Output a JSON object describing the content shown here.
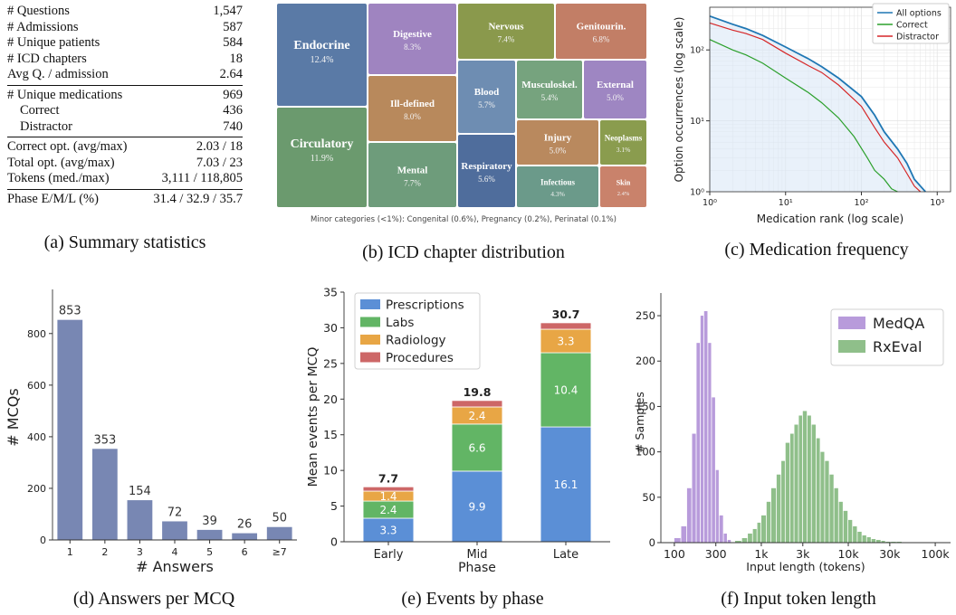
{
  "captions": {
    "a": "(a) Summary statistics",
    "b": "(b) ICD chapter distribution",
    "c": "(c) Medication frequency",
    "d": "(d) Answers per MCQ",
    "e": "(e) Events by phase",
    "f": "(f) Input token length"
  },
  "summary": {
    "groups": [
      [
        {
          "label": "# Questions",
          "value": "1,547"
        },
        {
          "label": "# Admissions",
          "value": "587"
        },
        {
          "label": "# Unique patients",
          "value": "584"
        },
        {
          "label": "# ICD chapters",
          "value": "18"
        },
        {
          "label": "Avg Q. / admission",
          "value": "2.64"
        }
      ],
      [
        {
          "label": "# Unique medications",
          "value": "969"
        },
        {
          "label": "Correct",
          "value": "436",
          "indent": true
        },
        {
          "label": "Distractor",
          "value": "740",
          "indent": true
        }
      ],
      [
        {
          "label": "Correct opt. (avg/max)",
          "value": "2.03 / 18"
        },
        {
          "label": "Total opt. (avg/max)",
          "value": "7.03 / 23"
        },
        {
          "label": "Tokens (med./max)",
          "value": "3,111 / 118,805"
        }
      ],
      [
        {
          "label": "Phase E/M/L (%)",
          "value": "31.4 / 32.9 / 35.7"
        }
      ]
    ]
  },
  "chart_data": [
    {
      "type": "treemap",
      "items": [
        {
          "name": "Endocrine",
          "value": 12.4,
          "label": "12.4%",
          "color": "#5a7aa6"
        },
        {
          "name": "Circulatory",
          "value": 11.9,
          "label": "11.9%",
          "color": "#6b9a6e"
        },
        {
          "name": "Digestive",
          "value": 8.3,
          "label": "8.3%",
          "color": "#9f84c0"
        },
        {
          "name": "Ill-defined",
          "value": 8.0,
          "label": "8.0%",
          "color": "#b8895c"
        },
        {
          "name": "Mental",
          "value": 7.7,
          "label": "7.7%",
          "color": "#6e9c7b"
        },
        {
          "name": "Nervous",
          "value": 7.4,
          "label": "7.4%",
          "color": "#8a994c"
        },
        {
          "name": "Genitourin.",
          "value": 6.8,
          "label": "6.8%",
          "color": "#c27e66"
        },
        {
          "name": "Blood",
          "value": 5.7,
          "label": "5.7%",
          "color": "#6e8db2"
        },
        {
          "name": "Musculoskel.",
          "value": 5.4,
          "label": "5.4%",
          "color": "#76a37e"
        },
        {
          "name": "External",
          "value": 5.0,
          "label": "5.0%",
          "color": "#9e86c2"
        },
        {
          "name": "Respiratory",
          "value": 5.6,
          "label": "5.6%",
          "color": "#4f6d9c"
        },
        {
          "name": "Injury",
          "value": 5.0,
          "label": "5.0%",
          "color": "#b9895e"
        },
        {
          "name": "Neoplasms",
          "value": 3.1,
          "label": "3.1%",
          "color": "#8a9c4e"
        },
        {
          "name": "Infectious",
          "value": 4.3,
          "label": "4.3%",
          "color": "#6b9a8a"
        },
        {
          "name": "Skin",
          "value": 2.4,
          "label": "2.4%",
          "color": "#c9826b"
        }
      ],
      "note": "Minor categories (<1%): Congenital (0.6%), Pregnancy (0.2%), Perinatal (0.1%)"
    },
    {
      "type": "line",
      "xlabel": "Medication rank (log scale)",
      "ylabel": "Option occurrences (log scale)",
      "xscale": "log",
      "yscale": "log",
      "xlim": [
        1,
        1500
      ],
      "ylim": [
        1,
        400
      ],
      "xticks": [
        "10⁰",
        "10¹",
        "10²",
        "10³"
      ],
      "yticks": [
        "10⁰",
        "10¹",
        "10²"
      ],
      "legend_position": "top-right",
      "series": [
        {
          "name": "All options",
          "color": "#1f77b4",
          "x": [
            1,
            2,
            3,
            5,
            10,
            20,
            30,
            50,
            100,
            150,
            200,
            300,
            400,
            500,
            600,
            700
          ],
          "y": [
            300,
            230,
            200,
            160,
            110,
            75,
            58,
            40,
            22,
            12,
            7,
            4,
            2.5,
            1.5,
            1.2,
            1
          ]
        },
        {
          "name": "Correct",
          "color": "#2ca02c",
          "x": [
            1,
            2,
            3,
            5,
            10,
            20,
            30,
            50,
            80,
            120,
            150,
            200,
            250,
            300
          ],
          "y": [
            140,
            100,
            85,
            65,
            40,
            25,
            18,
            11,
            6,
            3,
            2,
            1.5,
            1.1,
            1
          ]
        },
        {
          "name": "Distractor",
          "color": "#d62728",
          "x": [
            1,
            2,
            3,
            5,
            10,
            20,
            30,
            50,
            100,
            150,
            200,
            300,
            400,
            500,
            600
          ],
          "y": [
            240,
            190,
            170,
            140,
            90,
            60,
            48,
            32,
            16,
            8,
            5,
            3,
            1.8,
            1.2,
            1
          ]
        }
      ]
    },
    {
      "type": "bar",
      "xlabel": "# Answers",
      "ylabel": "# MCQs",
      "categories": [
        "1",
        "2",
        "3",
        "4",
        "5",
        "6",
        "≥7"
      ],
      "values": [
        853,
        353,
        154,
        72,
        39,
        26,
        50
      ],
      "ylim": [
        0,
        950
      ],
      "yticks": [
        0,
        200,
        400,
        600,
        800
      ],
      "color": "#7887b3"
    },
    {
      "type": "bar",
      "stacked": true,
      "xlabel": "Phase",
      "ylabel": "Mean events per MCQ",
      "categories": [
        "Early",
        "Mid",
        "Late"
      ],
      "ylim": [
        0,
        35
      ],
      "yticks": [
        0,
        5,
        10,
        15,
        20,
        25,
        30,
        35
      ],
      "legend_position": "top-left",
      "series": [
        {
          "name": "Prescriptions",
          "color": "#5b8fd6",
          "values": [
            3.3,
            9.9,
            16.1
          ],
          "labels": [
            "3.3",
            "9.9",
            "16.1"
          ]
        },
        {
          "name": "Labs",
          "color": "#62b565",
          "values": [
            2.4,
            6.6,
            10.4
          ],
          "labels": [
            "2.4",
            "6.6",
            "10.4"
          ]
        },
        {
          "name": "Radiology",
          "color": "#e8a645",
          "values": [
            1.4,
            2.4,
            3.3
          ],
          "labels": [
            "1.4",
            "2.4",
            "3.3"
          ]
        },
        {
          "name": "Procedures",
          "color": "#cd6767",
          "values": [
            0.6,
            0.9,
            0.9
          ]
        }
      ],
      "totals": [
        "7.7",
        "19.8",
        "30.7"
      ]
    },
    {
      "type": "histogram",
      "xlabel": "Input length (tokens)",
      "ylabel": "# Samples",
      "xscale": "log",
      "xlim": [
        70,
        150000
      ],
      "ylim": [
        0,
        265
      ],
      "xticks": [
        {
          "value": 100,
          "label": "100"
        },
        {
          "value": 300,
          "label": "300"
        },
        {
          "value": 1000,
          "label": "1k"
        },
        {
          "value": 3000,
          "label": "3k"
        },
        {
          "value": 10000,
          "label": "10k"
        },
        {
          "value": 30000,
          "label": "30k"
        },
        {
          "value": 100000,
          "label": "100k"
        }
      ],
      "yticks": [
        0,
        50,
        100,
        150,
        200,
        250
      ],
      "legend_position": "top-right",
      "series": [
        {
          "name": "MedQA",
          "color": "#b89bdb",
          "bins": [
            [
              100,
              5
            ],
            [
              120,
              18
            ],
            [
              140,
              60
            ],
            [
              160,
              120
            ],
            [
              180,
              220
            ],
            [
              200,
              250
            ],
            [
              220,
              255
            ],
            [
              245,
              220
            ],
            [
              270,
              160
            ],
            [
              300,
              80
            ],
            [
              330,
              30
            ],
            [
              370,
              10
            ],
            [
              410,
              3
            ]
          ]
        },
        {
          "name": "RxEval",
          "color": "#8fbf8a",
          "bins": [
            [
              500,
              2
            ],
            [
              600,
              5
            ],
            [
              700,
              10
            ],
            [
              800,
              15
            ],
            [
              900,
              22
            ],
            [
              1000,
              30
            ],
            [
              1150,
              45
            ],
            [
              1300,
              60
            ],
            [
              1500,
              75
            ],
            [
              1700,
              90
            ],
            [
              1900,
              110
            ],
            [
              2150,
              120
            ],
            [
              2400,
              130
            ],
            [
              2700,
              140
            ],
            [
              3000,
              145
            ],
            [
              3400,
              140
            ],
            [
              3800,
              130
            ],
            [
              4300,
              115
            ],
            [
              4800,
              100
            ],
            [
              5400,
              90
            ],
            [
              6100,
              75
            ],
            [
              6900,
              60
            ],
            [
              7800,
              45
            ],
            [
              8800,
              35
            ],
            [
              10000,
              25
            ],
            [
              11300,
              18
            ],
            [
              12800,
              12
            ],
            [
              14500,
              8
            ],
            [
              16400,
              6
            ],
            [
              18500,
              4
            ],
            [
              21000,
              3
            ],
            [
              24000,
              2
            ],
            [
              27000,
              1
            ],
            [
              31000,
              1
            ],
            [
              36000,
              1
            ]
          ]
        }
      ]
    }
  ]
}
